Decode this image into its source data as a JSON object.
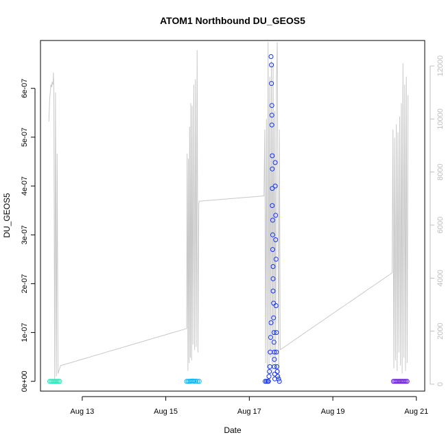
{
  "chart_data": {
    "type": "scatter",
    "title": "ATOM1 Northbound DU_GEOS5",
    "xlabel": "Date",
    "ylabel": "DU_GEOS5",
    "x_ticks": [
      "Aug 13",
      "Aug 15",
      "Aug 17",
      "Aug 19",
      "Aug 21"
    ],
    "x_tick_days": [
      13,
      15,
      17,
      19,
      21
    ],
    "xlim_days": [
      12.0,
      21.2
    ],
    "y_ticks": [
      "0e+00",
      "1e-07",
      "2e-07",
      "3e-07",
      "4e-07",
      "5e-07",
      "6e-07"
    ],
    "y_tick_values": [
      0,
      1e-07,
      2e-07,
      3e-07,
      4e-07,
      5e-07,
      6e-07
    ],
    "ylim": [
      -2e-08,
      6.98e-07
    ],
    "y2_ticks": [
      "0",
      "2000",
      "4000",
      "6000",
      "8000",
      "10000",
      "12000"
    ],
    "y2_tick_values": [
      0,
      2000,
      4000,
      6000,
      8000,
      10000,
      12000
    ],
    "y2lim": [
      -260,
      12960
    ],
    "colors": {
      "altitude_line": "#c8c8c8",
      "axis": "#000000",
      "right_axis": "#bebebe",
      "group_1": "#1de9b6",
      "group_2": "#00b8ff",
      "group_3": "#1030ff",
      "group_4": "#6a18f0"
    },
    "points": [
      {
        "group": "group_1",
        "x": [
          12.22,
          12.25,
          12.28,
          12.31,
          12.34,
          12.37,
          12.4,
          12.43,
          12.46
        ],
        "y": [
          0.0,
          0.0,
          0.0,
          0.0,
          0.0,
          0.0,
          0.0,
          0.0,
          0.0
        ]
      },
      {
        "group": "group_2",
        "x": [
          15.5,
          15.53,
          15.56,
          15.59,
          15.62,
          15.65,
          15.68,
          15.72,
          15.76,
          15.8
        ],
        "y": [
          0.0,
          0.0,
          0.0,
          3e-10,
          5e-10,
          8e-10,
          2e-10,
          5e-10,
          0.0,
          0.0
        ]
      },
      {
        "group": "group_3",
        "x": [
          17.38,
          17.41,
          17.44,
          17.46,
          17.47,
          17.48,
          17.49,
          17.5,
          17.51,
          17.52,
          17.52,
          17.53,
          17.53,
          17.54,
          17.54,
          17.54,
          17.55,
          17.55,
          17.55,
          17.55,
          17.56,
          17.56,
          17.56,
          17.57,
          17.57,
          17.57,
          17.58,
          17.58,
          17.59,
          17.59,
          17.6,
          17.6,
          17.6,
          17.61,
          17.61,
          17.62,
          17.62,
          17.63,
          17.63,
          17.64,
          17.64,
          17.65,
          17.65,
          17.66,
          17.67,
          17.68,
          17.7,
          17.72
        ],
        "y": [
          0.0,
          0.0,
          0.0,
          0.0,
          1e-08,
          2e-08,
          3e-08,
          6e-08,
          9e-08,
          1.2e-07,
          6.65e-07,
          6.48e-07,
          6.1e-07,
          5.65e-07,
          5.45e-07,
          5.25e-07,
          4.62e-07,
          4.35e-07,
          3.95e-07,
          3.6e-07,
          3.3e-07,
          3e-07,
          2.7e-07,
          2.35e-07,
          2.1e-07,
          1.85e-07,
          1.6e-07,
          1.3e-07,
          1e-07,
          8e-08,
          6e-08,
          4.5e-08,
          3e-08,
          1.5e-08,
          5e-09,
          4.48e-07,
          4e-07,
          3.4e-07,
          2.9e-07,
          2.5e-07,
          1.55e-07,
          1e-07,
          6e-08,
          3e-08,
          2e-08,
          1e-08,
          5e-09,
          0.0
        ]
      },
      {
        "group": "group_4",
        "x": [
          20.45,
          20.48,
          20.51,
          20.54,
          20.57,
          20.6,
          20.63,
          20.66,
          20.69,
          20.72,
          20.75,
          20.78
        ],
        "y": [
          0.0,
          0.0,
          0.0,
          0.0,
          0.0,
          0.0,
          0.0,
          0.0,
          0.0,
          0.0,
          0.0,
          0.0
        ]
      }
    ],
    "altitude_right_axis": {
      "x": [
        12.2,
        12.22,
        12.24,
        12.25,
        12.27,
        12.28,
        12.3,
        12.31,
        12.32,
        12.34,
        12.36,
        12.38,
        12.4,
        12.42,
        12.44,
        12.46,
        12.48,
        15.5,
        15.51,
        15.53,
        15.54,
        15.56,
        15.57,
        15.59,
        15.6,
        15.62,
        15.63,
        15.65,
        15.67,
        15.69,
        15.71,
        15.73,
        15.75,
        15.77,
        15.79,
        15.8,
        17.35,
        17.37,
        17.39,
        17.41,
        17.43,
        17.45,
        17.47,
        17.49,
        17.51,
        17.53,
        17.55,
        17.57,
        17.59,
        17.61,
        17.63,
        17.65,
        17.67,
        17.7,
        17.72,
        17.74,
        20.42,
        20.44,
        20.46,
        20.48,
        20.5,
        20.52,
        20.54,
        20.56,
        20.58,
        20.6,
        20.62,
        20.64,
        20.66,
        20.68,
        20.7,
        20.72,
        20.74,
        20.76,
        20.78,
        20.8
      ],
      "y": [
        9900,
        10750,
        11100,
        11300,
        11200,
        11400,
        11300,
        11750,
        10950,
        200,
        11000,
        300,
        8700,
        400,
        500,
        600,
        700,
        2100,
        8700,
        500,
        8500,
        800,
        9700,
        1000,
        10600,
        900,
        10500,
        1500,
        11300,
        1300,
        11500,
        1400,
        12600,
        1200,
        6800,
        6900,
        7100,
        9600,
        800,
        10000,
        600,
        12900,
        400,
        11600,
        1000,
        12200,
        300,
        12100,
        800,
        10300,
        400,
        11500,
        12900,
        200,
        9600,
        1300,
        4200,
        9600,
        600,
        9300,
        900,
        9800,
        500,
        9500,
        1200,
        10100,
        700,
        10600,
        400,
        12100,
        1000,
        11300,
        500,
        11600,
        800,
        10900
      ]
    }
  }
}
